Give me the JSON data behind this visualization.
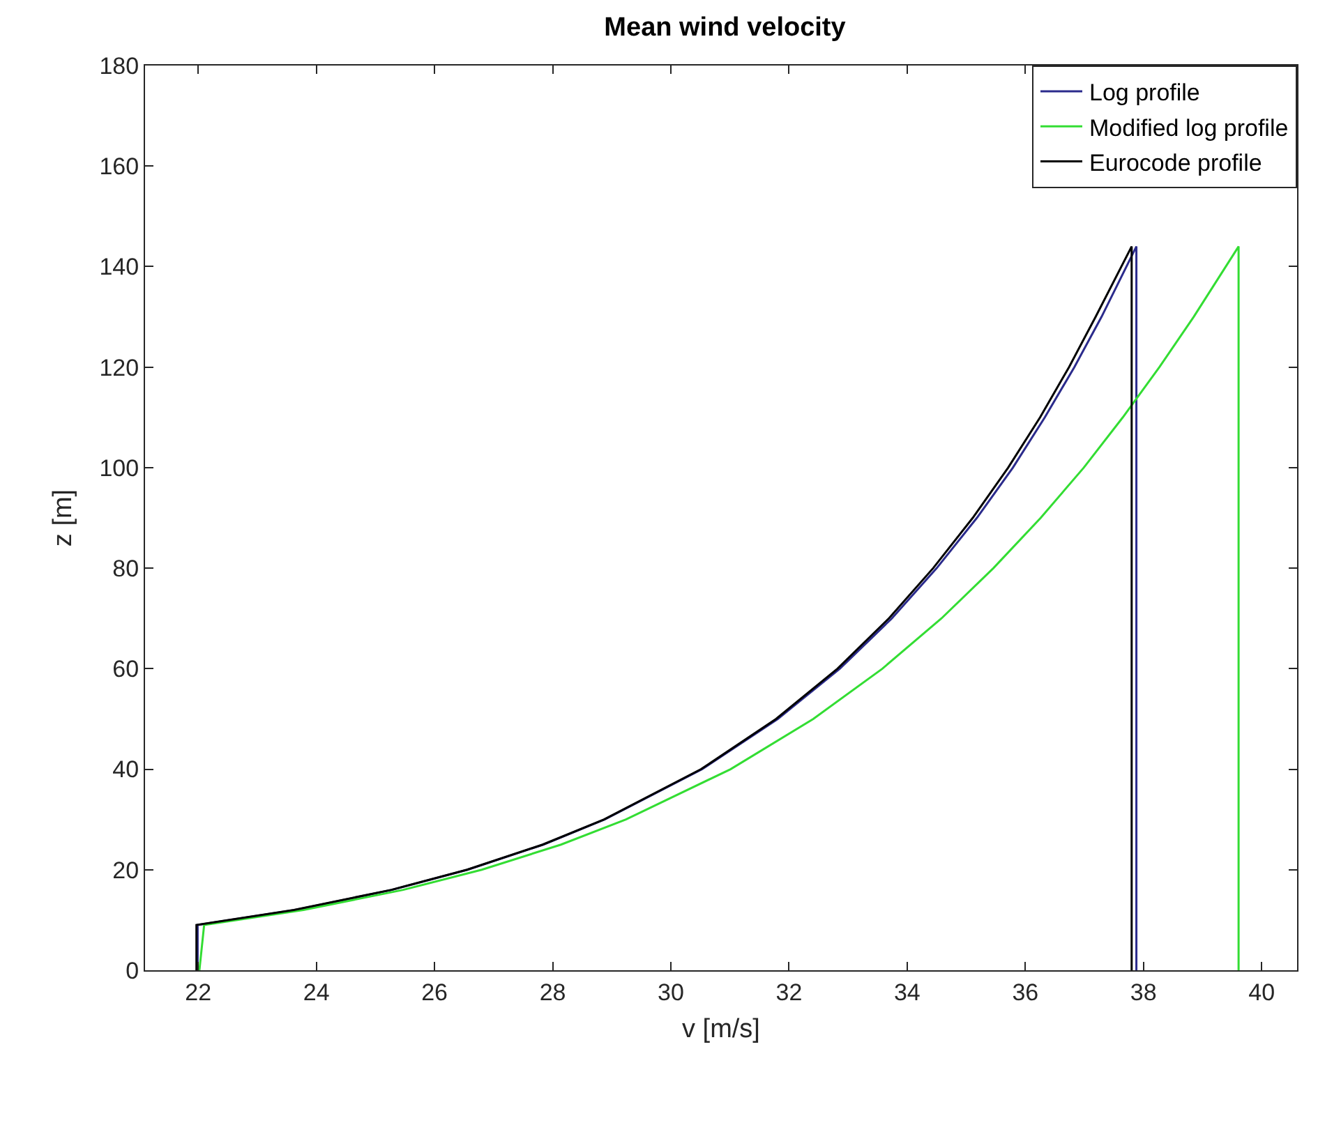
{
  "chart_data": {
    "type": "line",
    "title": "Mean wind velocity",
    "xlabel": "v [m/s]",
    "ylabel": "z [m]",
    "xlim": [
      21.1,
      40.6
    ],
    "xticks": [
      22,
      24,
      26,
      28,
      30,
      32,
      34,
      36,
      38,
      40
    ],
    "ylim": [
      0,
      180
    ],
    "yticks": [
      0,
      20,
      40,
      60,
      80,
      100,
      120,
      140,
      160,
      180
    ],
    "grid": false,
    "legend": "top right",
    "line_style": "solid",
    "marker": "none",
    "series": [
      {
        "name": "Log profile",
        "color": "#2b2b8c",
        "x": [
          21.99,
          21.99,
          23.64,
          25.28,
          26.56,
          27.84,
          28.88,
          30.53,
          31.81,
          32.86,
          33.74,
          34.5,
          35.18,
          35.79,
          36.33,
          36.83,
          37.29,
          37.88,
          37.88
        ],
        "values": [
          0,
          9,
          12,
          16,
          20,
          25,
          30,
          40,
          50,
          60,
          70,
          80,
          90,
          100,
          110,
          120,
          130,
          144,
          0
        ]
      },
      {
        "name": "Modified log profile",
        "color": "#33dd33",
        "x": [
          22.02,
          22.1,
          23.78,
          25.47,
          26.8,
          28.14,
          29.24,
          31.01,
          32.41,
          33.58,
          34.58,
          35.46,
          36.26,
          36.99,
          37.65,
          38.27,
          38.85,
          39.61,
          39.61
        ],
        "values": [
          0,
          9,
          12,
          16,
          20,
          25,
          30,
          40,
          50,
          60,
          70,
          80,
          90,
          100,
          110,
          120,
          130,
          144,
          0
        ]
      },
      {
        "name": "Eurocode profile",
        "color": "#000000",
        "x": [
          21.97,
          21.97,
          23.62,
          25.27,
          26.55,
          27.83,
          28.87,
          30.51,
          31.78,
          32.82,
          33.69,
          34.44,
          35.11,
          35.71,
          36.25,
          36.74,
          37.19,
          37.8,
          37.8
        ],
        "values": [
          0,
          9,
          12,
          16,
          20,
          25,
          30,
          40,
          50,
          60,
          70,
          80,
          90,
          100,
          110,
          120,
          130,
          144,
          0
        ]
      }
    ]
  }
}
